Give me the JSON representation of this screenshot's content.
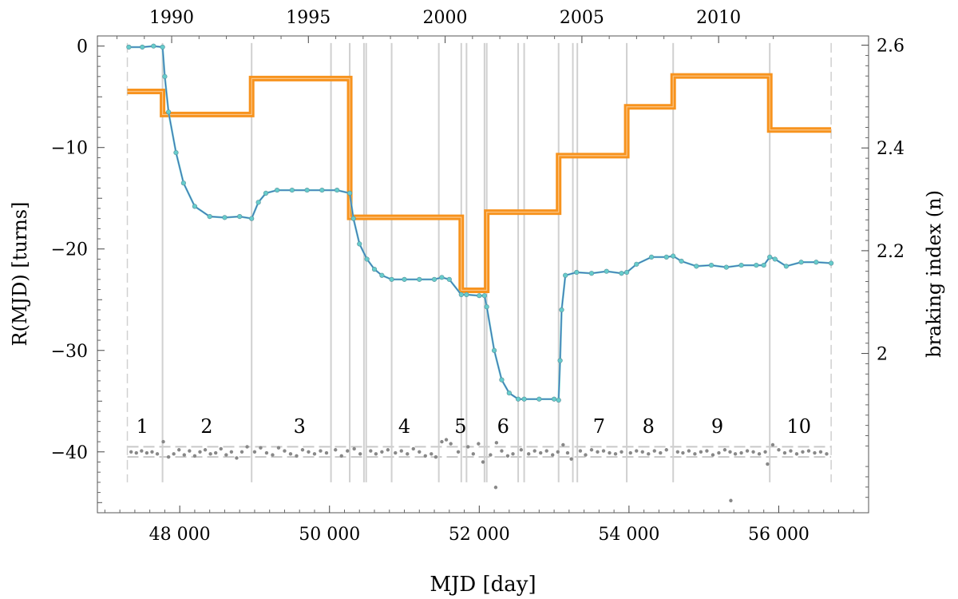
{
  "chart_data": {
    "type": "line",
    "title": "",
    "xlabel": "MJD [day]",
    "ylabel_left": "R(MJD) [turns]",
    "ylabel_right": "braking index (n)",
    "xlim": [
      46900,
      57200
    ],
    "ylim_left": [
      -46,
      1
    ],
    "ylim_right": [
      1.69,
      2.618
    ],
    "x_ticks": [
      48000,
      50000,
      52000,
      54000,
      56000
    ],
    "x_tick_labels": [
      "48 000",
      "50 000",
      "52 000",
      "54 000",
      "56 000"
    ],
    "top_axis": {
      "ticks": [
        47892,
        49718,
        51544,
        53371,
        55197
      ],
      "labels": [
        "1990",
        "1995",
        "2000",
        "2005",
        "2010"
      ]
    },
    "y_ticks_left": [
      0,
      -10,
      -20,
      -30,
      -40
    ],
    "y_tick_labels_left": [
      "0",
      "−10",
      "−20",
      "−30",
      "−40"
    ],
    "y_ticks_right": [
      2.6,
      2.4,
      2.2,
      2.0
    ],
    "y_tick_labels_right": [
      "2.6",
      "2.4",
      "2.2",
      "2"
    ],
    "grid": false,
    "boundaries_dashed": [
      47300,
      56700
    ],
    "boundaries": [
      47770,
      48960,
      50020,
      50270,
      50460,
      50490,
      50830,
      51460,
      51760,
      51830,
      52070,
      52100,
      52520,
      52600,
      53060,
      53250,
      53310,
      53970,
      54590,
      55880
    ],
    "segment_labels": [
      {
        "text": "1",
        "x": 47500
      },
      {
        "text": "2",
        "x": 48360
      },
      {
        "text": "3",
        "x": 49600
      },
      {
        "text": "4",
        "x": 51000
      },
      {
        "text": "5",
        "x": 51750
      },
      {
        "text": "6",
        "x": 52320
      },
      {
        "text": "7",
        "x": 53600
      },
      {
        "text": "8",
        "x": 54260
      },
      {
        "text": "9",
        "x": 55180
      },
      {
        "text": "10",
        "x": 56270
      }
    ],
    "segment_label_y": -37.5,
    "residual_band": [
      -39.5,
      -40.5
    ],
    "braking_index_steps": [
      {
        "x0": 47300,
        "x1": 47770,
        "n": 2.51
      },
      {
        "x0": 47770,
        "x1": 48960,
        "n": 2.465
      },
      {
        "x0": 48960,
        "x1": 50270,
        "n": 2.535
      },
      {
        "x0": 50270,
        "x1": 51760,
        "n": 2.265
      },
      {
        "x0": 51760,
        "x1": 52100,
        "n": 2.123
      },
      {
        "x0": 52100,
        "x1": 53060,
        "n": 2.275
      },
      {
        "x0": 53060,
        "x1": 53970,
        "n": 2.385
      },
      {
        "x0": 53970,
        "x1": 54590,
        "n": 2.48
      },
      {
        "x0": 54590,
        "x1": 55880,
        "n": 2.54
      },
      {
        "x0": 55880,
        "x1": 56700,
        "n": 2.435
      }
    ],
    "series": [
      {
        "role": "phase-fit",
        "x": [
          47320,
          47500,
          47650,
          47770,
          47800,
          47850,
          47950,
          48050,
          48200,
          48400,
          48600,
          48800,
          48960,
          49050,
          49150,
          49300,
          49500,
          49700,
          49900,
          50100,
          50270,
          50320,
          50400,
          50500,
          50600,
          50700,
          50830,
          51000,
          51200,
          51400,
          51500,
          51600,
          51760,
          51830,
          52000,
          52070,
          52100,
          52200,
          52300,
          52400,
          52520,
          52600,
          52800,
          53000,
          53060,
          53080,
          53100,
          53150,
          53300,
          53500,
          53700,
          53900,
          53970,
          54100,
          54300,
          54500,
          54590,
          54700,
          54900,
          55100,
          55300,
          55500,
          55700,
          55800,
          55880,
          55950,
          56100,
          56300,
          56500,
          56700
        ],
        "y": [
          -0.1,
          -0.1,
          0.0,
          -0.1,
          -3.0,
          -6.5,
          -10.5,
          -13.5,
          -15.8,
          -16.8,
          -16.9,
          -16.8,
          -17.0,
          -15.4,
          -14.5,
          -14.2,
          -14.2,
          -14.2,
          -14.2,
          -14.2,
          -14.5,
          -17.0,
          -19.5,
          -21.0,
          -22.0,
          -22.6,
          -23.0,
          -23.0,
          -23.0,
          -23.0,
          -22.8,
          -23.0,
          -24.5,
          -24.5,
          -24.6,
          -24.6,
          -25.7,
          -30.0,
          -32.9,
          -34.2,
          -34.8,
          -34.8,
          -34.8,
          -34.8,
          -34.9,
          -31.0,
          -26.0,
          -22.6,
          -22.3,
          -22.4,
          -22.2,
          -22.4,
          -22.3,
          -21.5,
          -20.8,
          -20.8,
          -20.7,
          -21.2,
          -21.7,
          -21.6,
          -21.8,
          -21.6,
          -21.6,
          -21.6,
          -20.8,
          -21.0,
          -21.7,
          -21.3,
          -21.3,
          -21.4
        ]
      },
      {
        "role": "residuals",
        "x": [
          47350,
          47420,
          47490,
          47560,
          47630,
          47700,
          47780,
          47850,
          47920,
          47990,
          48060,
          48130,
          48200,
          48270,
          48340,
          48410,
          48480,
          48550,
          48620,
          48690,
          48760,
          48830,
          48900,
          49000,
          49080,
          49160,
          49240,
          49320,
          49400,
          49480,
          49560,
          49640,
          49720,
          49800,
          49880,
          49960,
          50080,
          50160,
          50240,
          50330,
          50410,
          50550,
          50620,
          50700,
          50780,
          50880,
          50960,
          51040,
          51120,
          51200,
          51280,
          51360,
          51420,
          51500,
          51560,
          51620,
          51720,
          51850,
          51920,
          51990,
          52050,
          52150,
          52230,
          52300,
          52380,
          52450,
          52560,
          52660,
          52740,
          52820,
          52900,
          52980,
          53050,
          53120,
          53180,
          53230,
          53350,
          53420,
          53500,
          53580,
          53660,
          53740,
          53820,
          53900,
          54020,
          54100,
          54180,
          54260,
          54340,
          54420,
          54500,
          54650,
          54720,
          54800,
          54880,
          54960,
          55040,
          55120,
          55200,
          55280,
          55350,
          55420,
          55500,
          55580,
          55660,
          55740,
          55820,
          55850,
          55920,
          56000,
          56080,
          56160,
          56240,
          56320,
          56400,
          56480,
          56560,
          56640
        ],
        "y": [
          -40.0,
          -40.1,
          -39.9,
          -40.1,
          -40.0,
          -40.2,
          -39.0,
          -40.5,
          -40.2,
          -39.8,
          -40.3,
          -39.9,
          -40.4,
          -40.0,
          -39.8,
          -40.2,
          -40.1,
          -39.7,
          -40.3,
          -40.0,
          -40.6,
          -40.0,
          -39.5,
          -40.0,
          -39.6,
          -40.1,
          -40.3,
          -39.6,
          -39.9,
          -40.2,
          -40.4,
          -39.8,
          -40.0,
          -40.2,
          -39.9,
          -40.1,
          -39.8,
          -40.4,
          -39.9,
          -39.7,
          -40.2,
          -39.9,
          -40.2,
          -40.0,
          -39.8,
          -40.1,
          -39.9,
          -40.2,
          -39.7,
          -40.0,
          -40.4,
          -40.2,
          -40.5,
          -39.0,
          -38.8,
          -39.2,
          -40.0,
          -39.5,
          -40.2,
          -39.2,
          -41.0,
          -40.3,
          -39.1,
          -39.9,
          -40.4,
          -40.2,
          -39.8,
          -40.2,
          -39.9,
          -40.1,
          -39.9,
          -40.3,
          -40.0,
          -39.3,
          -40.1,
          -40.7,
          -39.9,
          -40.3,
          -39.8,
          -40.0,
          -39.9,
          -40.1,
          -40.2,
          -40.0,
          -40.1,
          -39.9,
          -40.0,
          -40.2,
          -39.9,
          -40.1,
          -39.8,
          -40.0,
          -40.1,
          -39.9,
          -40.2,
          -40.0,
          -39.9,
          -40.3,
          -40.1,
          -39.8,
          -40.0,
          -40.2,
          -40.1,
          -39.9,
          -40.0,
          -40.2,
          -40.0,
          -41.2,
          -39.3,
          -39.8,
          -40.1,
          -39.9,
          -40.2,
          -40.0,
          -39.9,
          -40.1,
          -40.0,
          -40.2
        ]
      },
      {
        "role": "outliers",
        "x": [
          52220,
          55360
        ],
        "y": [
          -43.5,
          -44.8
        ]
      }
    ],
    "colors": {
      "steps": "#f7931e",
      "fit_cyan": "#66cccc",
      "fit_blue": "#3333aa",
      "points": "#888888",
      "boundary": "#d0d0d0",
      "band": "#c8c8c8"
    }
  }
}
